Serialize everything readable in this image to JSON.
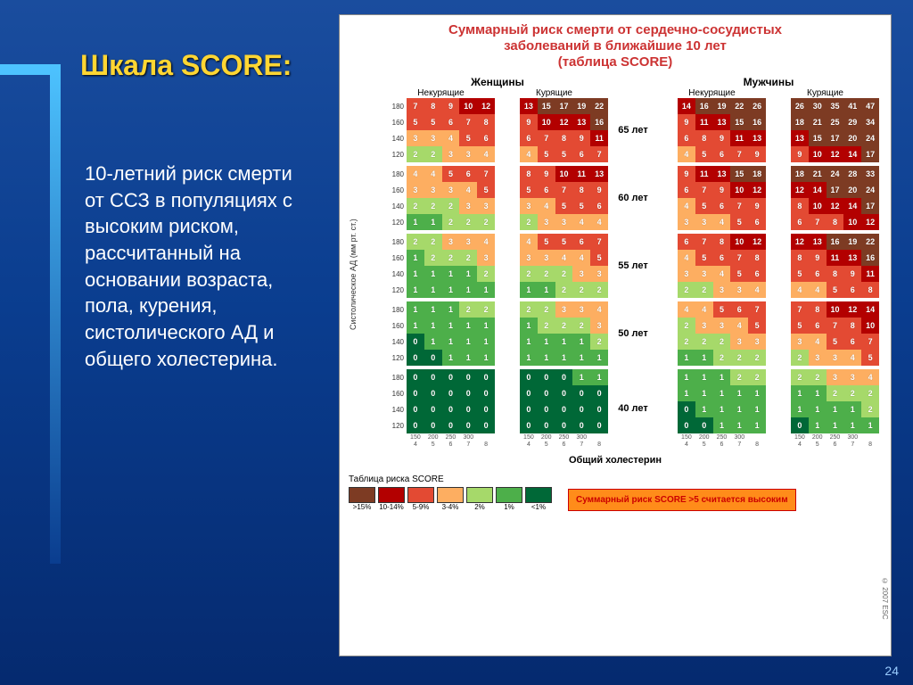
{
  "slide": {
    "title": "Шкала SCORE:",
    "body_text": "10-летний риск смерти от ССЗ в популяциях с высоким риском, рассчитанный на основании возраста, пола, курения, систолического АД и общего холестерина.",
    "page_number": "24",
    "accent_color": "#4dc3ff",
    "title_color": "#ffd633",
    "bg_gradient_top": "#1a4d9e",
    "bg_gradient_bottom": "#052a6f"
  },
  "chart": {
    "title_line1": "Суммарный риск смерти от сердечно-сосудистых",
    "title_line2": "заболеваний в ближайшие 10 лет",
    "title_line3": "(таблица SCORE)",
    "gender_labels": [
      "Женщины",
      "Мужчины"
    ],
    "smoker_labels": [
      "Некурящие",
      "Курящие",
      "Некурящие",
      "Курящие"
    ],
    "age_labels": [
      "65 лет",
      "60 лет",
      "55 лет",
      "50 лет",
      "40 лет"
    ],
    "bp_labels": [
      "180",
      "160",
      "140",
      "120"
    ],
    "chol_ticks_mgdl": [
      "150",
      "200",
      "250",
      "300",
      ""
    ],
    "chol_ticks_mmol": [
      "4",
      "5",
      "6",
      "7",
      "8"
    ],
    "chol_unit_label": "мг/дл",
    "yaxis_label": "Систолическое АД (мм рт. ст.)",
    "xaxis_label": "Общий холестерин",
    "copyright": "© 2007 ESC",
    "risk_colors": {
      "c0": "#006837",
      "c1": "#4daf4a",
      "c2": "#a6d96a",
      "c3": "#fee08b",
      "c4": "#fdae61",
      "c5": "#e34a33",
      "c6": "#b30000",
      "c7": "#7d3b23"
    },
    "legend": {
      "title": "Таблица риска SCORE",
      "items": [
        {
          "label": ">15%",
          "color": "c7"
        },
        {
          "label": "10-14%",
          "color": "c6"
        },
        {
          "label": "5-9%",
          "color": "c5"
        },
        {
          "label": "3-4%",
          "color": "c4"
        },
        {
          "label": "2%",
          "color": "c2"
        },
        {
          "label": "1%",
          "color": "c1"
        },
        {
          "label": "<1%",
          "color": "c0"
        }
      ],
      "high_risk_note": "Суммарный риск SCORE >5 считается высоким"
    },
    "blocks": [
      [
        [
          [
            7,
            8,
            9,
            10,
            12
          ],
          [
            5,
            5,
            6,
            7,
            8
          ],
          [
            3,
            3,
            4,
            5,
            6
          ],
          [
            2,
            2,
            3,
            3,
            4
          ]
        ],
        [
          [
            13,
            15,
            17,
            19,
            22
          ],
          [
            9,
            10,
            12,
            13,
            16
          ],
          [
            6,
            7,
            8,
            9,
            11
          ],
          [
            4,
            5,
            5,
            6,
            7
          ]
        ],
        [
          [
            14,
            16,
            19,
            22,
            26
          ],
          [
            9,
            11,
            13,
            15,
            16
          ],
          [
            6,
            8,
            9,
            11,
            13
          ],
          [
            4,
            5,
            6,
            7,
            9
          ]
        ],
        [
          [
            26,
            30,
            35,
            41,
            47
          ],
          [
            18,
            21,
            25,
            29,
            34
          ],
          [
            13,
            15,
            17,
            20,
            24
          ],
          [
            9,
            10,
            12,
            14,
            17
          ]
        ]
      ],
      [
        [
          [
            4,
            4,
            5,
            6,
            7
          ],
          [
            3,
            3,
            3,
            4,
            5
          ],
          [
            2,
            2,
            2,
            3,
            3
          ],
          [
            1,
            1,
            2,
            2,
            2
          ]
        ],
        [
          [
            8,
            9,
            10,
            11,
            13
          ],
          [
            5,
            6,
            7,
            8,
            9
          ],
          [
            3,
            4,
            5,
            5,
            6
          ],
          [
            2,
            3,
            3,
            4,
            4
          ]
        ],
        [
          [
            9,
            11,
            13,
            15,
            18
          ],
          [
            6,
            7,
            9,
            10,
            12
          ],
          [
            4,
            5,
            6,
            7,
            9
          ],
          [
            3,
            3,
            4,
            5,
            6
          ]
        ],
        [
          [
            18,
            21,
            24,
            28,
            33
          ],
          [
            12,
            14,
            17,
            20,
            24
          ],
          [
            8,
            10,
            12,
            14,
            17
          ],
          [
            6,
            7,
            8,
            10,
            12
          ]
        ]
      ],
      [
        [
          [
            2,
            2,
            3,
            3,
            4
          ],
          [
            1,
            2,
            2,
            2,
            3
          ],
          [
            1,
            1,
            1,
            1,
            2
          ],
          [
            1,
            1,
            1,
            1,
            1
          ]
        ],
        [
          [
            4,
            5,
            5,
            6,
            7
          ],
          [
            3,
            3,
            4,
            4,
            5
          ],
          [
            2,
            2,
            2,
            3,
            3
          ],
          [
            1,
            1,
            2,
            2,
            2
          ]
        ],
        [
          [
            6,
            7,
            8,
            10,
            12
          ],
          [
            4,
            5,
            6,
            7,
            8
          ],
          [
            3,
            3,
            4,
            5,
            6
          ],
          [
            2,
            2,
            3,
            3,
            4
          ]
        ],
        [
          [
            12,
            13,
            16,
            19,
            22
          ],
          [
            8,
            9,
            11,
            13,
            16
          ],
          [
            5,
            6,
            8,
            9,
            11
          ],
          [
            4,
            4,
            5,
            6,
            8
          ]
        ]
      ],
      [
        [
          [
            1,
            1,
            1,
            2,
            2
          ],
          [
            1,
            1,
            1,
            1,
            1
          ],
          [
            0,
            1,
            1,
            1,
            1
          ],
          [
            0,
            0,
            1,
            1,
            1
          ]
        ],
        [
          [
            2,
            2,
            3,
            3,
            4
          ],
          [
            1,
            2,
            2,
            2,
            3
          ],
          [
            1,
            1,
            1,
            1,
            2
          ],
          [
            1,
            1,
            1,
            1,
            1
          ]
        ],
        [
          [
            4,
            4,
            5,
            6,
            7
          ],
          [
            2,
            3,
            3,
            4,
            5
          ],
          [
            2,
            2,
            2,
            3,
            3
          ],
          [
            1,
            1,
            2,
            2,
            2
          ]
        ],
        [
          [
            7,
            8,
            10,
            12,
            14
          ],
          [
            5,
            6,
            7,
            8,
            10
          ],
          [
            3,
            4,
            5,
            6,
            7
          ],
          [
            2,
            3,
            3,
            4,
            5
          ]
        ]
      ],
      [
        [
          [
            0,
            0,
            0,
            0,
            0
          ],
          [
            0,
            0,
            0,
            0,
            0
          ],
          [
            0,
            0,
            0,
            0,
            0
          ],
          [
            0,
            0,
            0,
            0,
            0
          ]
        ],
        [
          [
            0,
            0,
            0,
            1,
            1
          ],
          [
            0,
            0,
            0,
            0,
            0
          ],
          [
            0,
            0,
            0,
            0,
            0
          ],
          [
            0,
            0,
            0,
            0,
            0
          ]
        ],
        [
          [
            1,
            1,
            1,
            2,
            2
          ],
          [
            1,
            1,
            1,
            1,
            1
          ],
          [
            0,
            1,
            1,
            1,
            1
          ],
          [
            0,
            0,
            1,
            1,
            1
          ]
        ],
        [
          [
            2,
            2,
            3,
            3,
            4
          ],
          [
            1,
            1,
            2,
            2,
            2
          ],
          [
            1,
            1,
            1,
            1,
            2
          ],
          [
            0,
            1,
            1,
            1,
            1
          ]
        ]
      ]
    ]
  }
}
